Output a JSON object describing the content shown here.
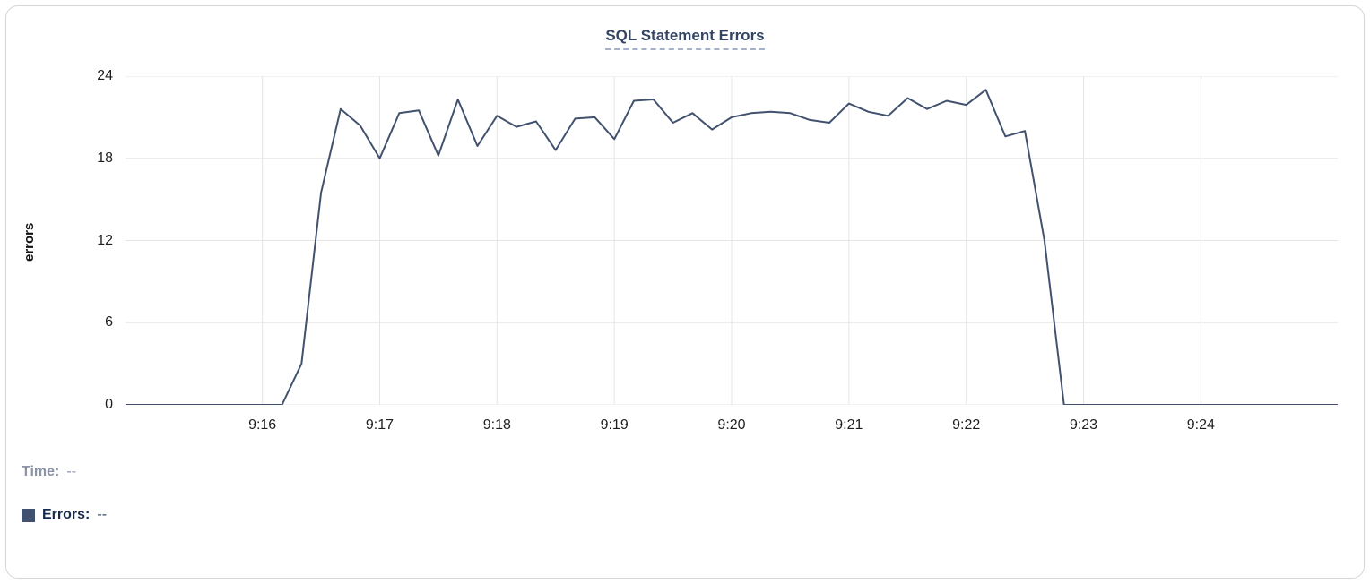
{
  "card": {
    "title": "SQL Statement Errors"
  },
  "footer": {
    "time_label": "Time:",
    "time_value": "--",
    "errors_label": "Errors:",
    "errors_value": "--"
  },
  "colors": {
    "line": "#42526E",
    "swatch": "#42526E",
    "title": "#344563",
    "grid": "#E5E5E5"
  },
  "chart_data": {
    "type": "line",
    "title": "SQL Statement Errors",
    "xlabel": "",
    "ylabel": "errors",
    "ylim": [
      0,
      24
    ],
    "yticks": [
      0,
      6,
      12,
      18,
      24
    ],
    "xticks": [
      "9:16",
      "9:17",
      "9:18",
      "9:19",
      "9:20",
      "9:21",
      "9:22",
      "9:23",
      "9:24"
    ],
    "x_domain": [
      "9:14:50",
      "9:25:10"
    ],
    "grid": true,
    "legend_position": "bottom-left",
    "series": [
      {
        "name": "Errors",
        "color": "#42526E",
        "points": [
          {
            "time": "9:14:50",
            "value": 0
          },
          {
            "time": "9:15:00",
            "value": 0
          },
          {
            "time": "9:15:30",
            "value": 0
          },
          {
            "time": "9:16:00",
            "value": 0
          },
          {
            "time": "9:16:10",
            "value": 0
          },
          {
            "time": "9:16:20",
            "value": 3
          },
          {
            "time": "9:16:30",
            "value": 15.5
          },
          {
            "time": "9:16:40",
            "value": 21.6
          },
          {
            "time": "9:16:50",
            "value": 20.4
          },
          {
            "time": "9:17:00",
            "value": 18
          },
          {
            "time": "9:17:10",
            "value": 21.3
          },
          {
            "time": "9:17:20",
            "value": 21.5
          },
          {
            "time": "9:17:30",
            "value": 18.2
          },
          {
            "time": "9:17:40",
            "value": 22.3
          },
          {
            "time": "9:17:50",
            "value": 18.9
          },
          {
            "time": "9:18:00",
            "value": 21.1
          },
          {
            "time": "9:18:10",
            "value": 20.3
          },
          {
            "time": "9:18:20",
            "value": 20.7
          },
          {
            "time": "9:18:30",
            "value": 18.6
          },
          {
            "time": "9:18:40",
            "value": 20.9
          },
          {
            "time": "9:18:50",
            "value": 21.0
          },
          {
            "time": "9:19:00",
            "value": 19.4
          },
          {
            "time": "9:19:10",
            "value": 22.2
          },
          {
            "time": "9:19:20",
            "value": 22.3
          },
          {
            "time": "9:19:30",
            "value": 20.6
          },
          {
            "time": "9:19:40",
            "value": 21.3
          },
          {
            "time": "9:19:50",
            "value": 20.1
          },
          {
            "time": "9:20:00",
            "value": 21.0
          },
          {
            "time": "9:20:10",
            "value": 21.3
          },
          {
            "time": "9:20:20",
            "value": 21.4
          },
          {
            "time": "9:20:30",
            "value": 21.3
          },
          {
            "time": "9:20:40",
            "value": 20.8
          },
          {
            "time": "9:20:50",
            "value": 20.6
          },
          {
            "time": "9:21:00",
            "value": 22.0
          },
          {
            "time": "9:21:10",
            "value": 21.4
          },
          {
            "time": "9:21:20",
            "value": 21.1
          },
          {
            "time": "9:21:30",
            "value": 22.4
          },
          {
            "time": "9:21:40",
            "value": 21.6
          },
          {
            "time": "9:21:50",
            "value": 22.2
          },
          {
            "time": "9:22:00",
            "value": 21.9
          },
          {
            "time": "9:22:10",
            "value": 23.0
          },
          {
            "time": "9:22:20",
            "value": 19.6
          },
          {
            "time": "9:22:30",
            "value": 20.0
          },
          {
            "time": "9:22:40",
            "value": 12
          },
          {
            "time": "9:22:50",
            "value": 0
          },
          {
            "time": "9:23:00",
            "value": 0
          },
          {
            "time": "9:23:30",
            "value": 0
          },
          {
            "time": "9:24:00",
            "value": 0
          },
          {
            "time": "9:24:30",
            "value": 0
          },
          {
            "time": "9:25:10",
            "value": 0
          }
        ]
      }
    ]
  }
}
